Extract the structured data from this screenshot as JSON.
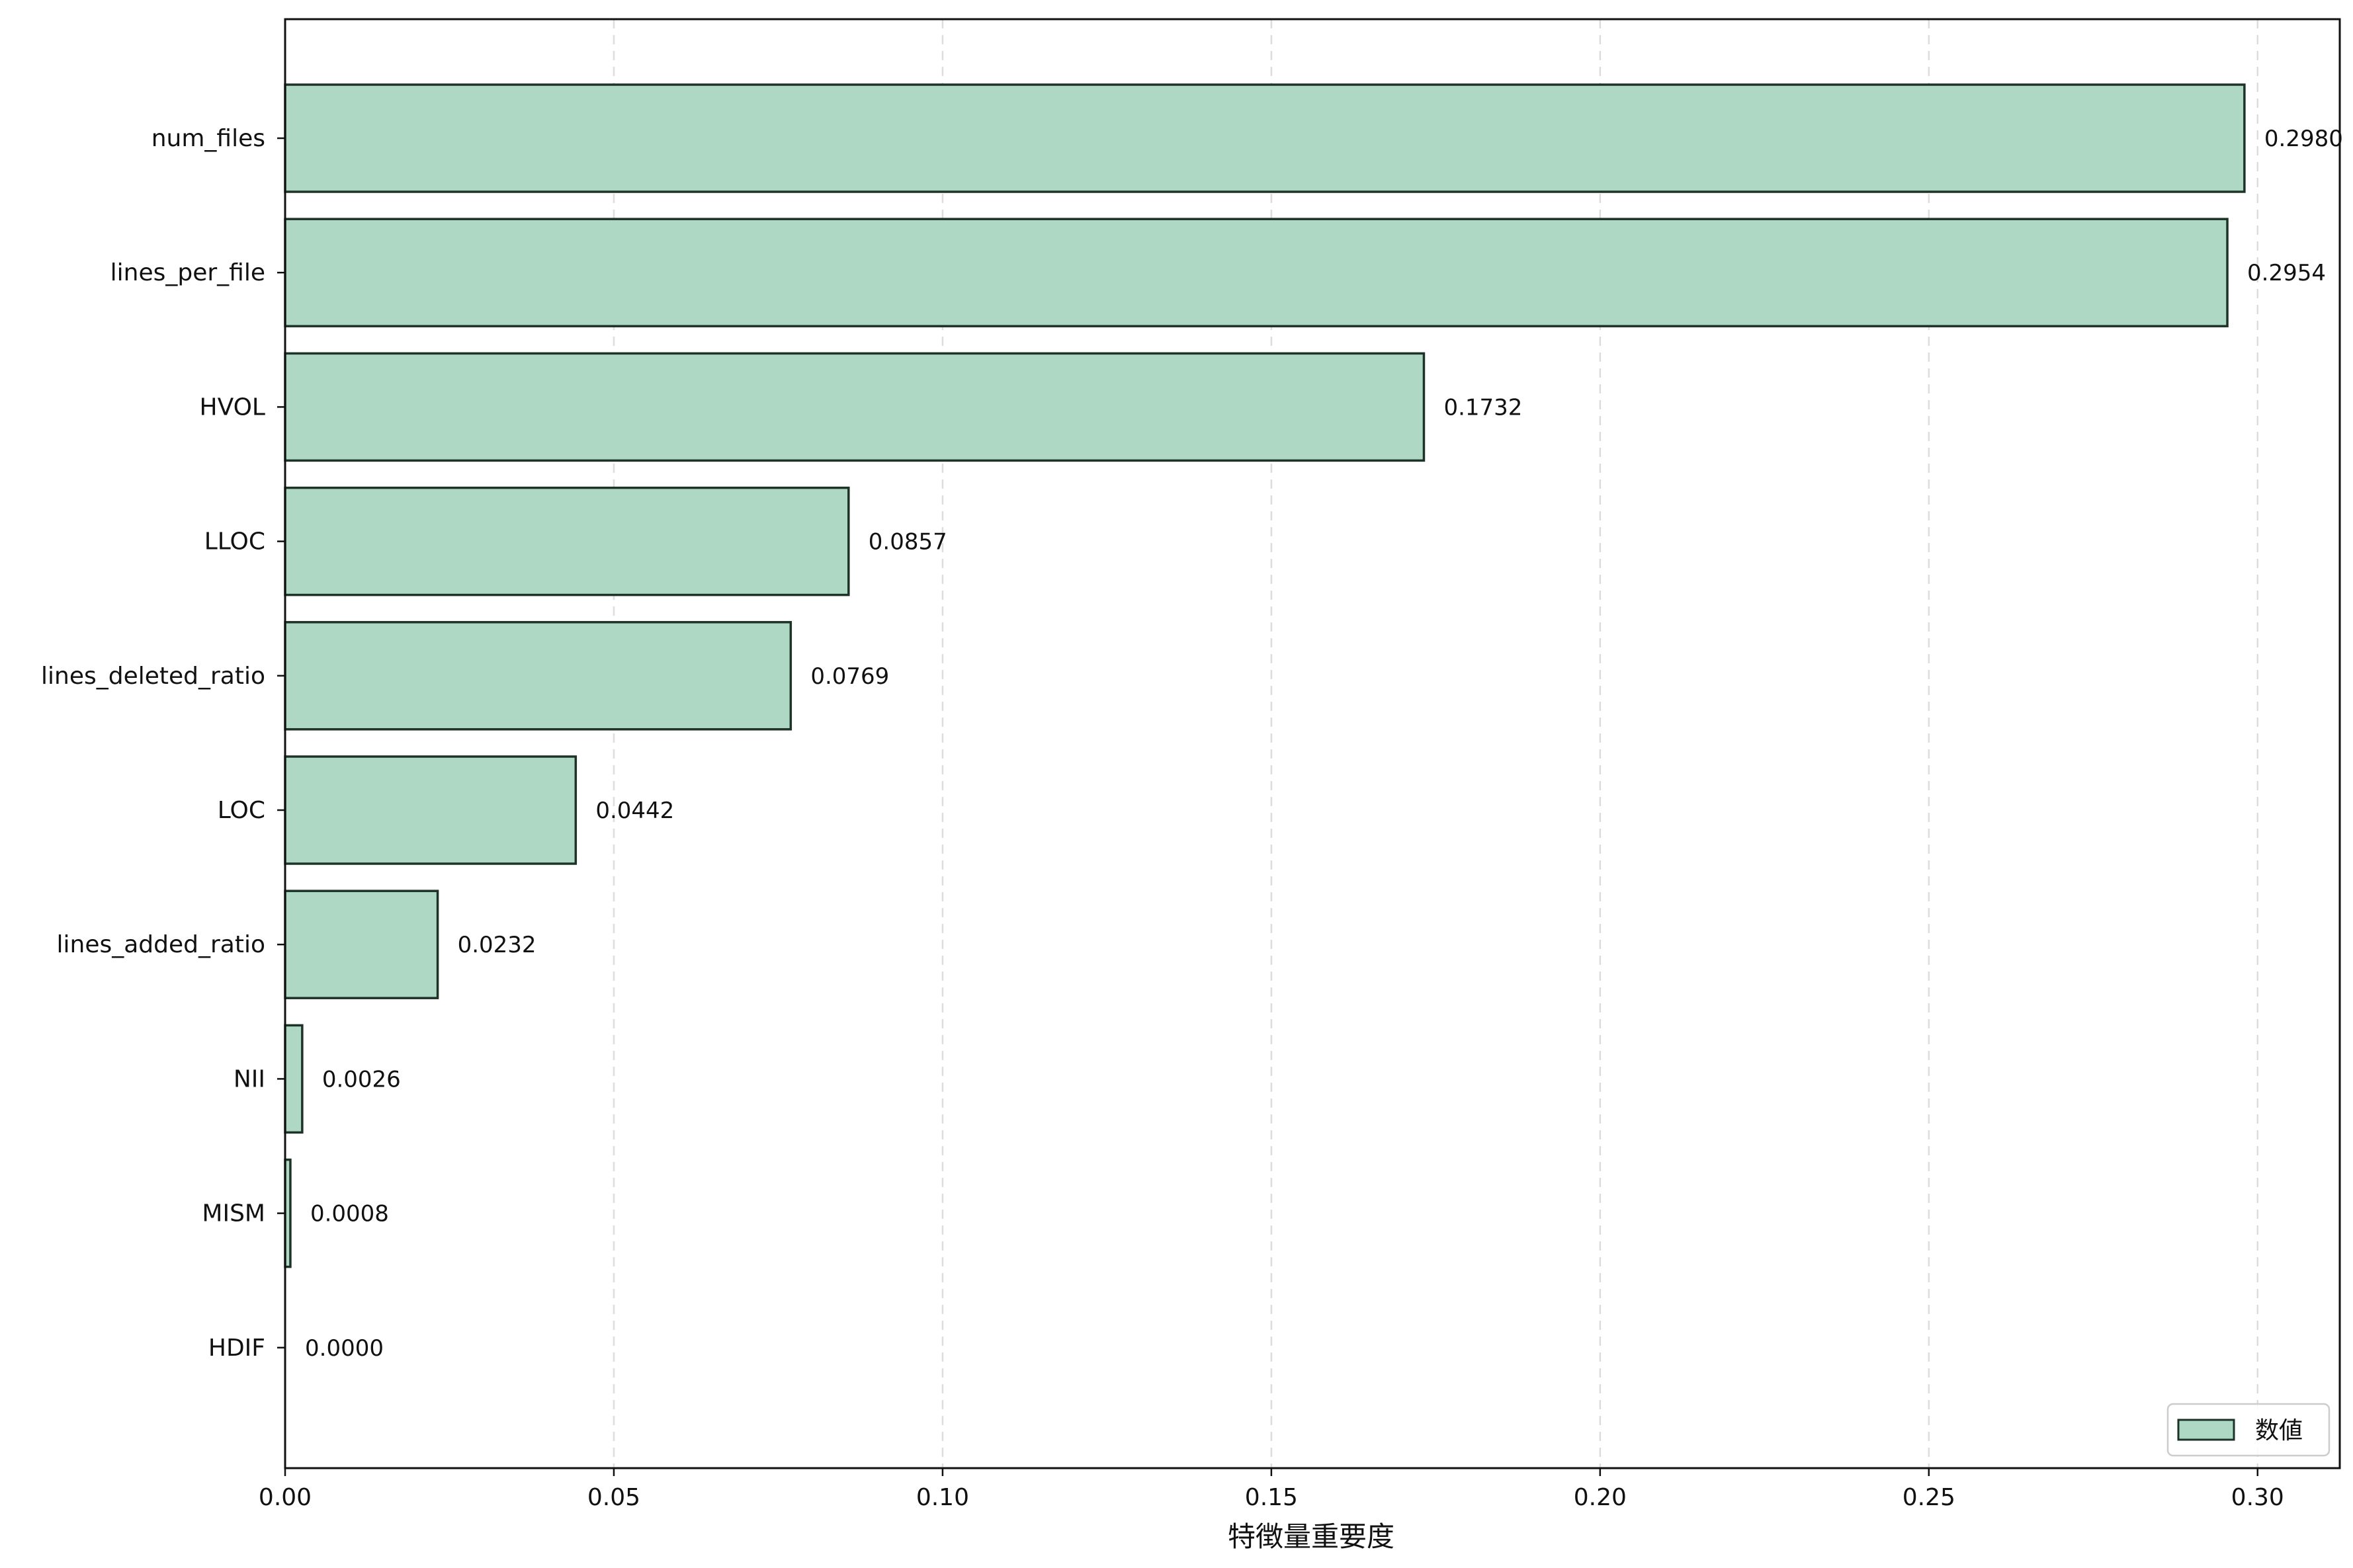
{
  "chart_data": {
    "type": "bar",
    "orientation": "horizontal",
    "title": "",
    "xlabel": "特徴量重要度",
    "ylabel": "",
    "categories": [
      "num_files",
      "lines_per_file",
      "HVOL",
      "LLOC",
      "lines_deleted_ratio",
      "LOC",
      "lines_added_ratio",
      "NII",
      "MISM",
      "HDIF"
    ],
    "series": [
      {
        "name": "数値",
        "values": [
          0.298,
          0.2954,
          0.1732,
          0.0857,
          0.0769,
          0.0442,
          0.0232,
          0.0026,
          0.0008,
          0.0
        ],
        "labels": [
          "0.2980",
          "0.2954",
          "0.1732",
          "0.0857",
          "0.0769",
          "0.0442",
          "0.0232",
          "0.0026",
          "0.0008",
          "0.0000"
        ]
      }
    ],
    "xlim": [
      0,
      0.3125
    ],
    "xticks": [
      0.0,
      0.05,
      0.1,
      0.15,
      0.2,
      0.25,
      0.3
    ],
    "xtick_labels": [
      "0.00",
      "0.05",
      "0.10",
      "0.15",
      "0.20",
      "0.25",
      "0.30"
    ],
    "grid": "x-dashed",
    "legend_position": "bottom-right",
    "colors": {
      "bar_fill": "#aed8c4",
      "bar_edge": "#1e3328",
      "grid": "#dddddd",
      "axis": "#111111"
    }
  }
}
